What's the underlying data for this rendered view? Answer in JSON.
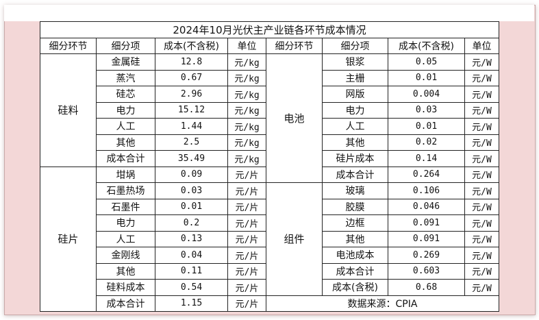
{
  "title": "2024年10月光伏主产业链各环节成本情况",
  "headers": {
    "segment": "细分环节",
    "item": "细分项",
    "cost": "成本(不含税)",
    "unit": "单位"
  },
  "left": {
    "silicon_material": {
      "label": "硅料",
      "rows": [
        {
          "item": "金属硅",
          "cost": "12.8",
          "unit": "元/kg"
        },
        {
          "item": "蒸汽",
          "cost": "0.67",
          "unit": "元/kg"
        },
        {
          "item": "硅芯",
          "cost": "2.96",
          "unit": "元/kg"
        },
        {
          "item": "电力",
          "cost": "15.12",
          "unit": "元/kg"
        },
        {
          "item": "人工",
          "cost": "1.44",
          "unit": "元/kg"
        },
        {
          "item": "其他",
          "cost": "2.5",
          "unit": "元/kg"
        },
        {
          "item": "成本合计",
          "cost": "35.49",
          "unit": "元/kg"
        }
      ]
    },
    "wafer": {
      "label": "硅片",
      "rows": [
        {
          "item": "坩埚",
          "cost": "0.09",
          "unit": "元/片"
        },
        {
          "item": "石墨热场",
          "cost": "0.03",
          "unit": "元/片"
        },
        {
          "item": "石墨件",
          "cost": "0.01",
          "unit": "元/片"
        },
        {
          "item": "电力",
          "cost": "0.2",
          "unit": "元/片"
        },
        {
          "item": "人工",
          "cost": "0.13",
          "unit": "元/片"
        },
        {
          "item": "金刚线",
          "cost": "0.04",
          "unit": "元/片"
        },
        {
          "item": "其他",
          "cost": "0.11",
          "unit": "元/片"
        },
        {
          "item": "硅料成本",
          "cost": "0.54",
          "unit": "元/片"
        },
        {
          "item": "成本合计",
          "cost": "1.15",
          "unit": "元/片"
        }
      ]
    }
  },
  "right": {
    "cell": {
      "label": "电池",
      "rows": [
        {
          "item": "银浆",
          "cost": "0.05",
          "unit": "元/W"
        },
        {
          "item": "主栅",
          "cost": "0.01",
          "unit": "元/W"
        },
        {
          "item": "网版",
          "cost": "0.004",
          "unit": "元/W"
        },
        {
          "item": "电力",
          "cost": "0.03",
          "unit": "元/W"
        },
        {
          "item": "人工",
          "cost": "0.01",
          "unit": "元/W"
        },
        {
          "item": "其他",
          "cost": "0.02",
          "unit": "元/W"
        },
        {
          "item": "硅片成本",
          "cost": "0.14",
          "unit": "元/W"
        },
        {
          "item": "成本合计",
          "cost": "0.264",
          "unit": "元/W"
        }
      ]
    },
    "module": {
      "label": "组件",
      "rows": [
        {
          "item": "玻璃",
          "cost": "0.106",
          "unit": "元/W"
        },
        {
          "item": "胶膜",
          "cost": "0.046",
          "unit": "元/W"
        },
        {
          "item": "边框",
          "cost": "0.091",
          "unit": "元/W"
        },
        {
          "item": "其他",
          "cost": "0.091",
          "unit": "元/W"
        },
        {
          "item": "电池成本",
          "cost": "0.269",
          "unit": "元/W"
        },
        {
          "item": "成本合计",
          "cost": "0.603",
          "unit": "元/W"
        },
        {
          "item": "成本(含税)",
          "cost": "0.68",
          "unit": "元/W"
        }
      ]
    }
  },
  "source": "数据来源：CPIA"
}
